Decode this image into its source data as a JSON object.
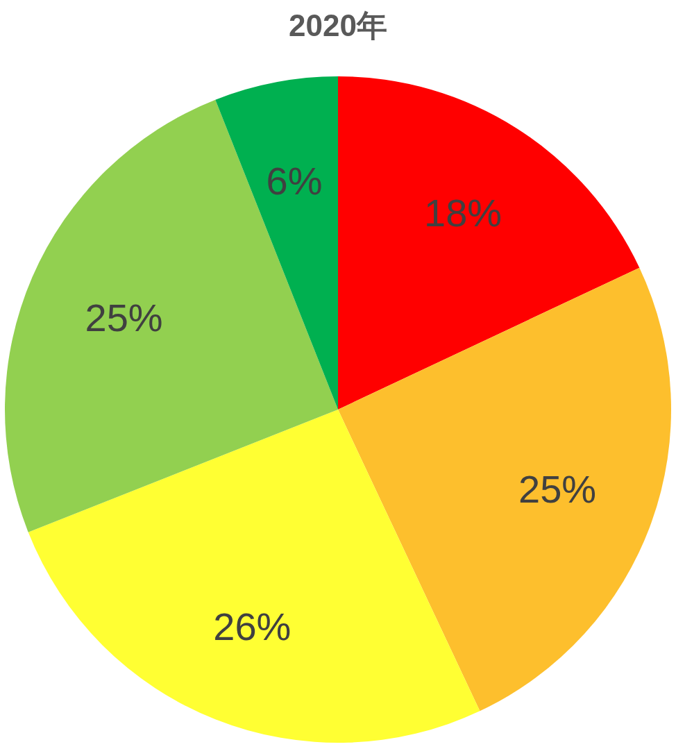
{
  "chart_data": {
    "type": "pie",
    "title": "2020年",
    "categories": [
      null,
      null,
      null,
      null,
      null
    ],
    "values": [
      18,
      25,
      26,
      25,
      6
    ],
    "colors": [
      "#ff0000",
      "#fdbf2d",
      "#ffff33",
      "#92d050",
      "#00b050"
    ],
    "value_labels": [
      "18%",
      "25%",
      "26%",
      "25%",
      "6%"
    ]
  }
}
